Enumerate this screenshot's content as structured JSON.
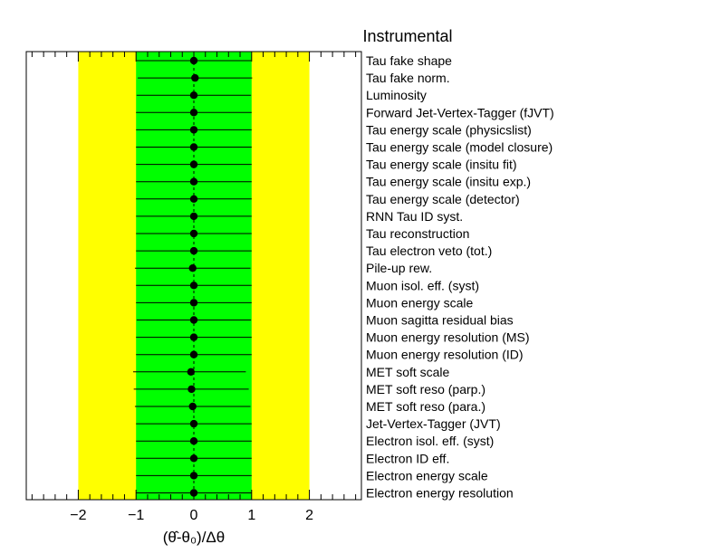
{
  "chart_data": {
    "type": "scatter",
    "title": "Instrumental",
    "xlabel": "(θ̂-θ₀)/Δθ",
    "xlim": [
      -2.9,
      2.9
    ],
    "x_ticks": [
      -2,
      -1,
      0,
      1,
      2
    ],
    "x_tick_labels": [
      "−2",
      "−1",
      "0",
      "1",
      "2"
    ],
    "bands": [
      {
        "name": "±2σ",
        "range": [
          -2,
          2
        ],
        "color": "#ffff00"
      },
      {
        "name": "±1σ",
        "range": [
          -1,
          1
        ],
        "color": "#00ff00"
      }
    ],
    "categories": [
      "Tau fake shape",
      "Tau fake norm.",
      "Luminosity",
      "Forward Jet-Vertex-Tagger (fJVT)",
      "Tau energy scale (physicslist)",
      "Tau energy scale (model closure)",
      "Tau energy scale (insitu fit)",
      "Tau energy scale (insitu exp.)",
      "Tau energy scale (detector)",
      "RNN Tau ID syst.",
      "Tau reconstruction",
      "Tau electron veto (tot.)",
      "Pile-up rew.",
      "Muon isol. eff. (syst)",
      "Muon energy scale",
      "Muon sagitta residual bias",
      "Muon energy resolution (MS)",
      "Muon energy resolution (ID)",
      "MET soft scale",
      "MET soft reso (parp.)",
      "MET soft reso (para.)",
      "Jet-Vertex-Tagger (JVT)",
      "Electron isol. eff. (syst)",
      "Electron ID eff.",
      "Electron energy scale",
      "Electron energy resolution"
    ],
    "values": [
      0.0,
      0.02,
      0.0,
      0.0,
      0.0,
      0.0,
      0.0,
      0.0,
      0.0,
      0.0,
      0.0,
      0.0,
      -0.02,
      0.0,
      0.0,
      0.0,
      0.0,
      0.0,
      -0.05,
      -0.04,
      -0.02,
      0.0,
      0.0,
      0.0,
      0.0,
      0.0
    ],
    "err_low": [
      0.99,
      0.99,
      0.99,
      1.0,
      1.0,
      1.0,
      1.0,
      1.0,
      1.0,
      1.0,
      1.0,
      1.0,
      1.0,
      1.0,
      1.0,
      0.99,
      1.0,
      1.0,
      1.0,
      1.0,
      1.0,
      1.0,
      1.0,
      1.0,
      1.0,
      1.0
    ],
    "err_high": [
      0.99,
      0.99,
      0.99,
      1.0,
      1.0,
      1.0,
      1.0,
      1.0,
      1.0,
      1.0,
      1.0,
      1.0,
      1.0,
      1.0,
      1.0,
      0.99,
      1.0,
      1.0,
      0.95,
      0.99,
      1.0,
      1.0,
      1.0,
      1.0,
      1.0,
      1.0
    ],
    "grid": false,
    "legend": "none",
    "colors": {
      "marker": "#000000",
      "band_2sigma": "#ffff00",
      "band_1sigma": "#00ff00",
      "zero_line": "#000000"
    }
  }
}
